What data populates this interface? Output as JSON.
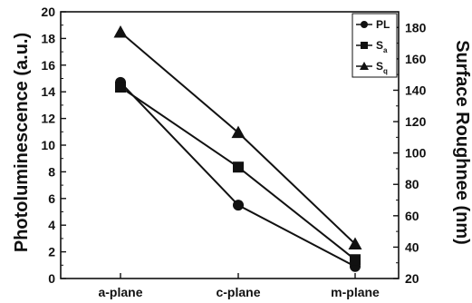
{
  "chart_data": {
    "type": "line",
    "categories": [
      "a-plane",
      "c-plane",
      "m-plane"
    ],
    "ylabel_left": "Photoluminescence (a.u.)",
    "ylabel_right": "Surface Roughnee (nm)",
    "ylim_left": [
      0,
      20
    ],
    "yticks_left": [
      0,
      2,
      4,
      6,
      8,
      10,
      12,
      14,
      16,
      18,
      20
    ],
    "ylim_right": [
      20,
      190
    ],
    "yticks_right": [
      20,
      40,
      60,
      80,
      100,
      120,
      140,
      160,
      180
    ],
    "legend_position": "top-right",
    "grid": false,
    "series": [
      {
        "name": "PL",
        "sub": "",
        "axis": "left",
        "marker": "circle",
        "values": [
          14.7,
          5.5,
          0.9
        ]
      },
      {
        "name": "S",
        "sub": "a",
        "axis": "right",
        "marker": "square",
        "values": [
          142,
          91,
          32
        ]
      },
      {
        "name": "S",
        "sub": "q",
        "axis": "right",
        "marker": "triangle",
        "values": [
          177,
          113,
          42
        ]
      }
    ]
  }
}
